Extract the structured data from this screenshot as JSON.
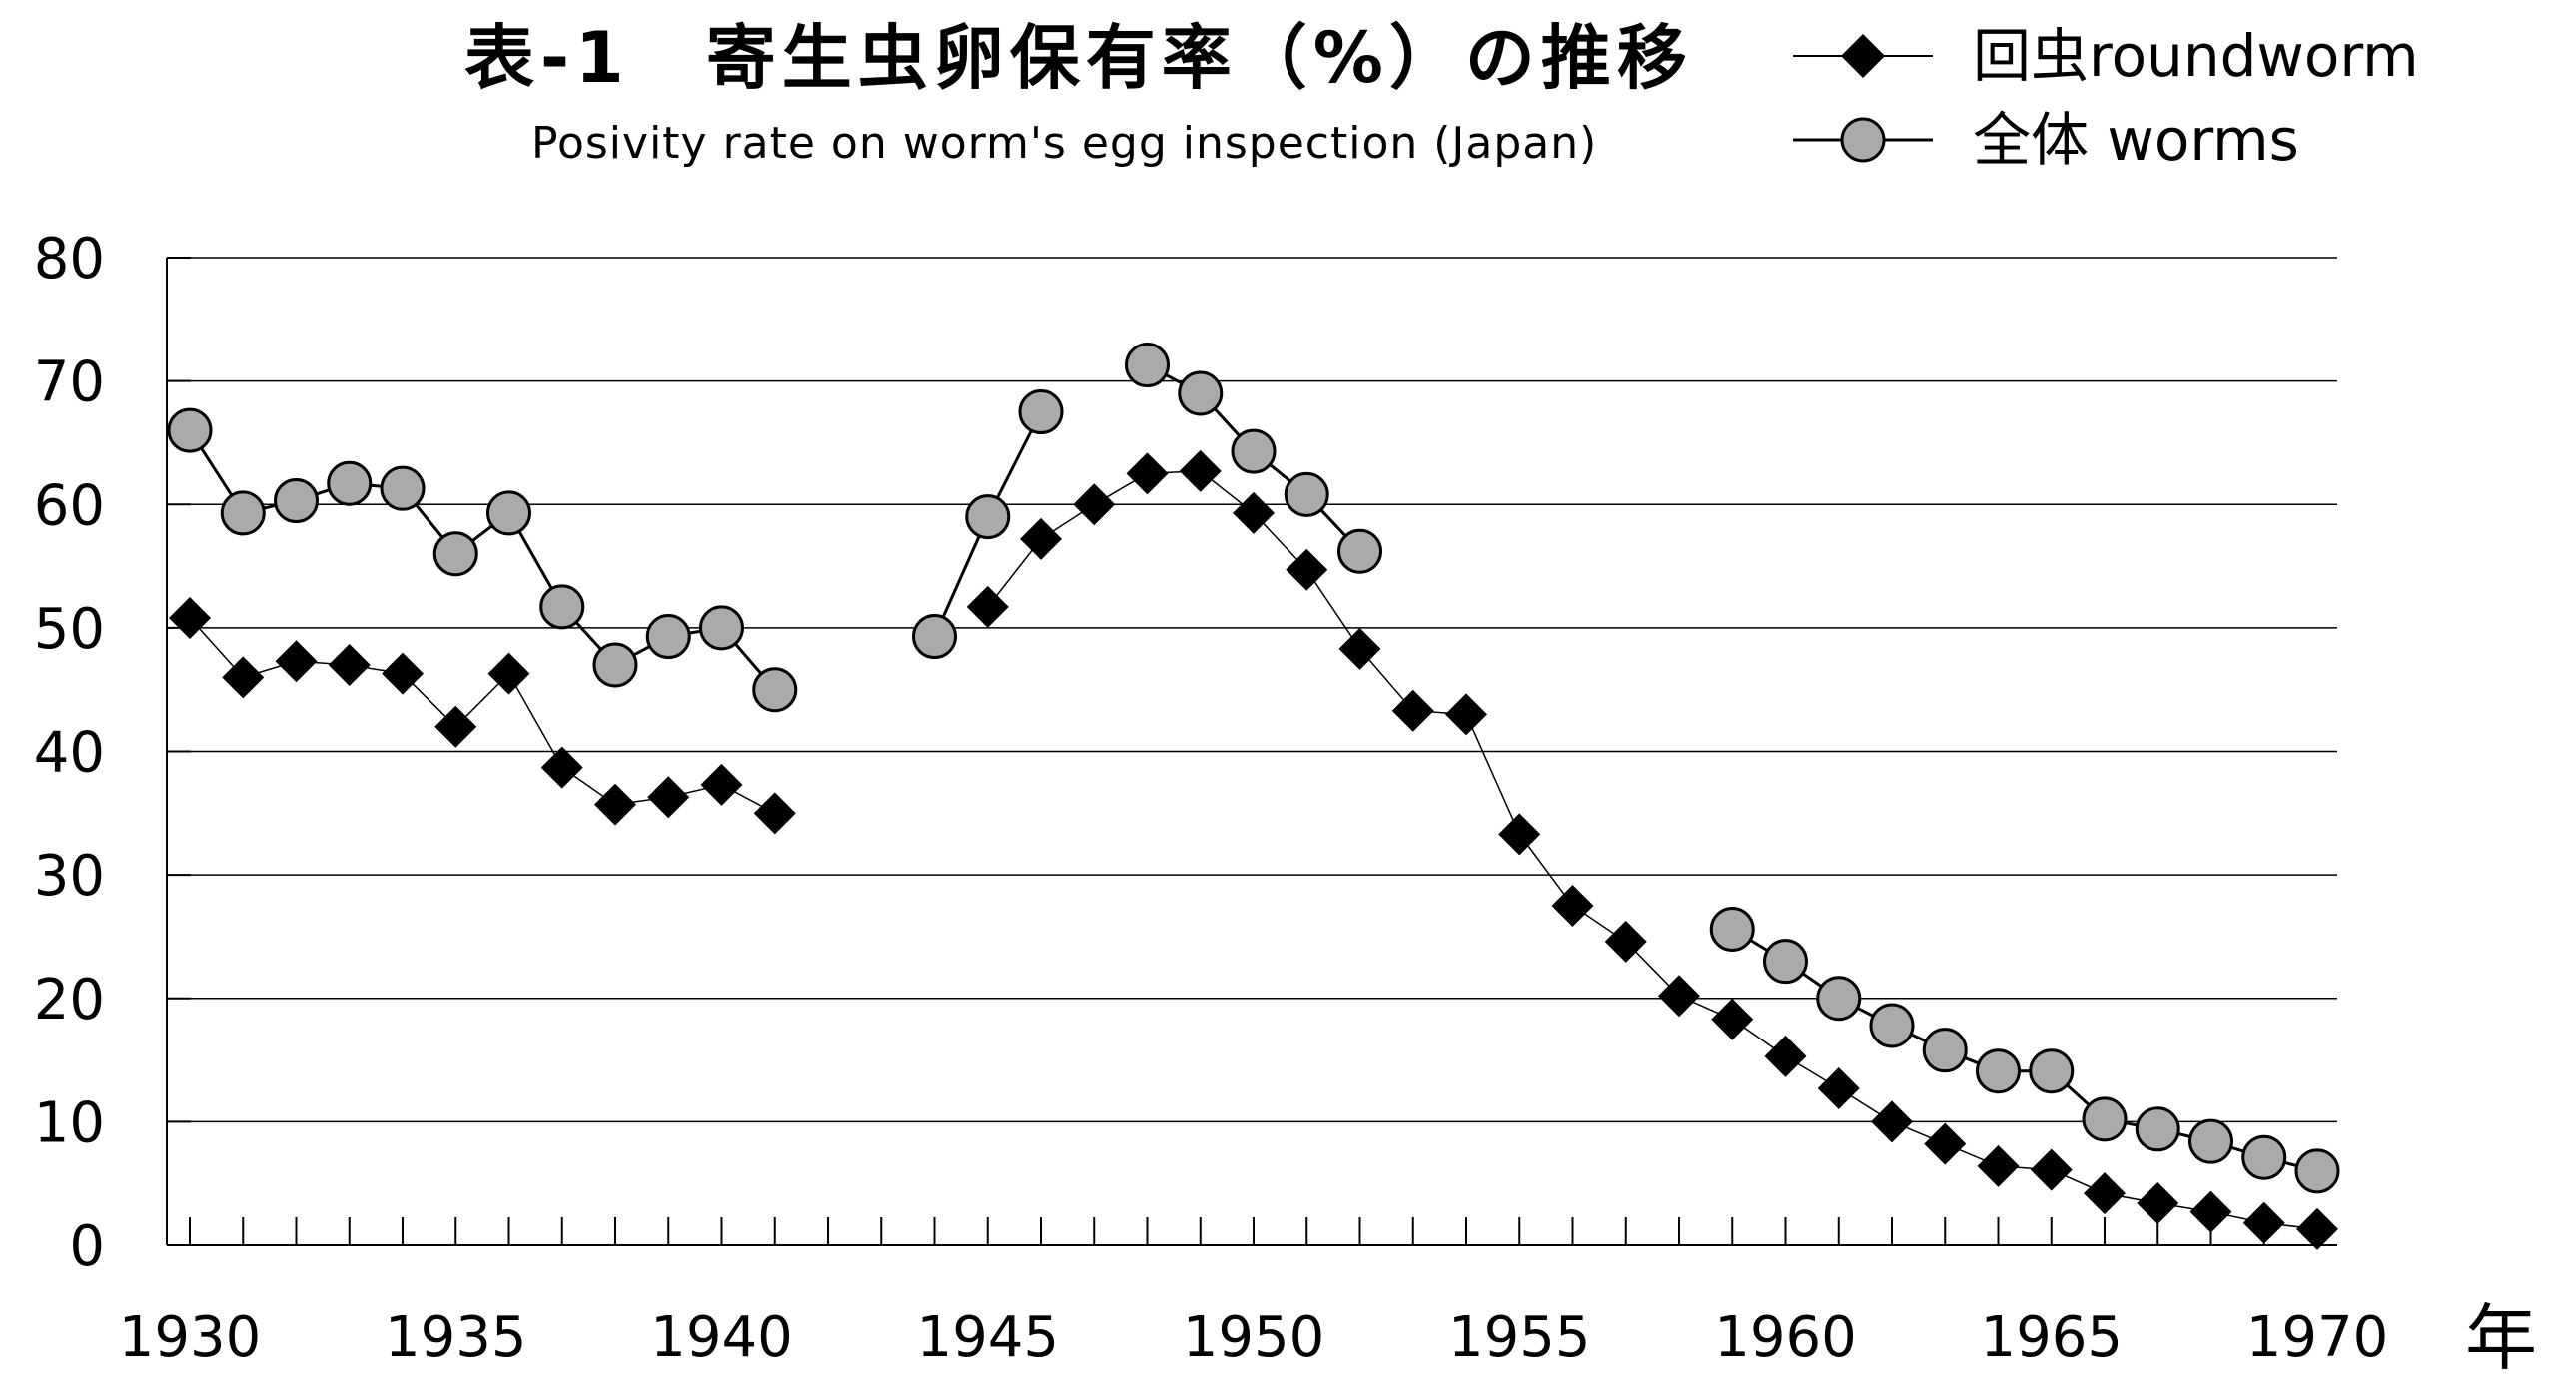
{
  "chart_data": {
    "type": "line",
    "title": "表-1　寄生虫卵保有率（%）の推移",
    "subtitle": "Posivity rate on worm's egg inspection (Japan)",
    "xlabel": "年",
    "ylabel": "",
    "xlim": [
      1930,
      1970
    ],
    "ylim": [
      0,
      80
    ],
    "x_ticks": [
      1930,
      1935,
      1940,
      1945,
      1950,
      1955,
      1960,
      1965,
      1970
    ],
    "y_ticks": [
      0,
      10,
      20,
      30,
      40,
      50,
      60,
      70,
      80
    ],
    "grid": "horizontal",
    "legend_position": "top-right",
    "series": [
      {
        "name": "回虫roundworm",
        "marker": "diamond",
        "color": "#000000",
        "segments": [
          [
            [
              1930,
              50.8
            ],
            [
              1931,
              46.0
            ],
            [
              1932,
              47.3
            ],
            [
              1933,
              47.0
            ],
            [
              1934,
              46.3
            ],
            [
              1935,
              42.0
            ],
            [
              1936,
              46.3
            ],
            [
              1937,
              38.7
            ],
            [
              1938,
              35.7
            ],
            [
              1939,
              36.3
            ],
            [
              1940,
              37.3
            ],
            [
              1941,
              35.0
            ]
          ],
          [
            [
              1945,
              51.7
            ],
            [
              1946,
              57.2
            ],
            [
              1947,
              60.0
            ],
            [
              1948,
              62.5
            ],
            [
              1949,
              62.7
            ],
            [
              1950,
              59.3
            ],
            [
              1951,
              54.7
            ],
            [
              1952,
              48.3
            ],
            [
              1953,
              43.3
            ],
            [
              1954,
              43.0
            ],
            [
              1955,
              33.3
            ],
            [
              1956,
              27.5
            ],
            [
              1957,
              24.6
            ],
            [
              1958,
              20.2
            ],
            [
              1959,
              18.3
            ],
            [
              1960,
              15.3
            ],
            [
              1961,
              12.7
            ],
            [
              1962,
              10.0
            ],
            [
              1963,
              8.2
            ],
            [
              1964,
              6.4
            ],
            [
              1965,
              6.1
            ],
            [
              1966,
              4.2
            ],
            [
              1967,
              3.4
            ],
            [
              1968,
              2.7
            ],
            [
              1969,
              1.8
            ],
            [
              1970,
              1.3
            ]
          ]
        ]
      },
      {
        "name": "全体 worms",
        "marker": "circle",
        "color": "#aaaaaa",
        "segments": [
          [
            [
              1930,
              66.0
            ],
            [
              1931,
              59.3
            ],
            [
              1932,
              60.3
            ],
            [
              1933,
              61.7
            ],
            [
              1934,
              61.3
            ],
            [
              1935,
              56.0
            ],
            [
              1936,
              59.3
            ],
            [
              1937,
              51.7
            ],
            [
              1938,
              47.0
            ],
            [
              1939,
              49.3
            ],
            [
              1940,
              50.0
            ],
            [
              1941,
              45.0
            ]
          ],
          [
            [
              1944,
              49.3
            ],
            [
              1945,
              59.0
            ],
            [
              1946,
              67.5
            ]
          ],
          [
            [
              1948,
              71.3
            ],
            [
              1949,
              69.0
            ],
            [
              1950,
              64.3
            ],
            [
              1951,
              60.8
            ],
            [
              1952,
              56.2
            ]
          ],
          [
            [
              1959,
              25.6
            ],
            [
              1960,
              23.0
            ],
            [
              1961,
              20.0
            ],
            [
              1962,
              17.8
            ],
            [
              1963,
              15.8
            ],
            [
              1964,
              14.1
            ],
            [
              1965,
              14.1
            ],
            [
              1966,
              10.2
            ],
            [
              1967,
              9.4
            ],
            [
              1968,
              8.4
            ],
            [
              1969,
              7.1
            ],
            [
              1970,
              6.0
            ]
          ]
        ]
      }
    ]
  }
}
